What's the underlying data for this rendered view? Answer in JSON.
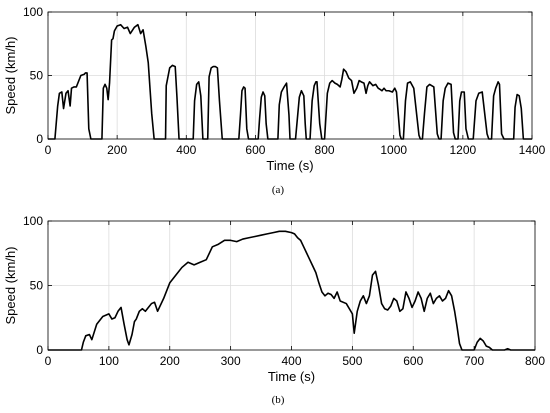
{
  "chart_data": [
    {
      "panel": "(a)",
      "type": "line",
      "xlabel": "Time (s)",
      "ylabel": "Speed (km/h)",
      "xlim": [
        0,
        1400
      ],
      "ylim": [
        0,
        100
      ],
      "xticks": [
        0,
        200,
        400,
        600,
        800,
        1000,
        1200,
        1400
      ],
      "yticks": [
        0,
        50,
        100
      ],
      "grid": true,
      "line_color": "#000000",
      "x": [
        0,
        20,
        28,
        33,
        40,
        45,
        52,
        58,
        64,
        68,
        75,
        82,
        95,
        105,
        108,
        113,
        118,
        124,
        156,
        160,
        165,
        170,
        174,
        178,
        184,
        188,
        192,
        200,
        210,
        220,
        230,
        238,
        250,
        260,
        268,
        275,
        283,
        290,
        300,
        307,
        315,
        322,
        330,
        340,
        342,
        352,
        360,
        368,
        373,
        379,
        386,
        392,
        420,
        424,
        430,
        436,
        442,
        448,
        462,
        466,
        472,
        478,
        484,
        490,
        496,
        504,
        508,
        552,
        557,
        561,
        566,
        570,
        575,
        580,
        583,
        608,
        612,
        617,
        622,
        627,
        631,
        636,
        643,
        665,
        669,
        675,
        683,
        690,
        697,
        700,
        704,
        716,
        720,
        727,
        733,
        740,
        744,
        747,
        755,
        758,
        764,
        770,
        775,
        778,
        786,
        792,
        800,
        808,
        815,
        822,
        830,
        837,
        845,
        850,
        855,
        862,
        870,
        878,
        885,
        893,
        900,
        906,
        914,
        920,
        925,
        930,
        940,
        948,
        955,
        961,
        966,
        972,
        978,
        986,
        996,
        1003,
        1008,
        1018,
        1022,
        1028,
        1034,
        1040,
        1048,
        1058,
        1073,
        1077,
        1083,
        1089,
        1096,
        1104,
        1116,
        1126,
        1131,
        1137,
        1143,
        1149,
        1157,
        1166,
        1173,
        1178,
        1186,
        1191,
        1196,
        1204,
        1209,
        1216,
        1226,
        1230,
        1238,
        1246,
        1256,
        1270,
        1275,
        1283,
        1289,
        1295,
        1302,
        1306,
        1312,
        1319,
        1347,
        1351,
        1357,
        1363,
        1369,
        1375,
        1400
      ],
      "y": [
        0,
        0,
        26,
        36,
        37,
        24,
        36,
        38,
        26,
        40,
        41,
        41,
        50,
        51,
        52,
        52,
        8,
        0,
        0,
        40,
        43,
        40,
        31,
        44,
        78,
        79,
        85,
        89,
        90,
        87,
        88,
        83,
        88,
        90,
        83,
        86,
        73,
        60,
        20,
        0,
        0,
        0,
        0,
        0,
        42,
        56,
        58,
        57,
        33,
        0,
        0,
        0,
        0,
        30,
        43,
        45,
        34,
        0,
        0,
        49,
        56,
        57,
        57,
        56,
        30,
        0,
        0,
        0,
        20,
        38,
        41,
        40,
        8,
        0,
        0,
        0,
        16,
        33,
        37,
        34,
        12,
        0,
        0,
        0,
        27,
        37,
        41,
        44,
        19,
        0,
        0,
        0,
        12,
        33,
        38,
        34,
        12,
        0,
        0,
        0,
        30,
        42,
        45,
        45,
        12,
        0,
        0,
        36,
        44,
        46,
        44,
        43,
        41,
        47,
        55,
        53,
        48,
        46,
        36,
        40,
        46,
        45,
        44,
        36,
        42,
        45,
        42,
        43,
        40,
        39,
        38,
        40,
        38,
        38,
        37,
        40,
        37,
        3,
        0,
        0,
        30,
        44,
        45,
        40,
        3,
        0,
        0,
        20,
        41,
        43,
        41,
        4,
        0,
        0,
        30,
        40,
        44,
        43,
        5,
        0,
        0,
        30,
        37,
        37,
        8,
        0,
        0,
        0,
        30,
        36,
        37,
        4,
        0,
        0,
        34,
        40,
        45,
        43,
        4,
        0,
        0,
        25,
        35,
        34,
        24,
        0,
        0
      ]
    },
    {
      "panel": "(b)",
      "type": "line",
      "xlabel": "Time (s)",
      "ylabel": "Speed (km/h)",
      "xlim": [
        0,
        800
      ],
      "ylim": [
        0,
        100
      ],
      "xticks": [
        0,
        100,
        200,
        300,
        400,
        500,
        600,
        700,
        800
      ],
      "yticks": [
        0,
        50,
        100
      ],
      "grid": true,
      "line_color": "#000000",
      "x": [
        0,
        55,
        58,
        62,
        68,
        72,
        80,
        90,
        100,
        105,
        110,
        115,
        120,
        125,
        130,
        133,
        138,
        142,
        145,
        150,
        155,
        160,
        165,
        170,
        175,
        180,
        190,
        200,
        210,
        220,
        230,
        240,
        250,
        260,
        270,
        280,
        290,
        300,
        310,
        320,
        330,
        340,
        350,
        360,
        370,
        380,
        390,
        400,
        405,
        410,
        415,
        420,
        425,
        430,
        435,
        440,
        445,
        450,
        455,
        460,
        465,
        470,
        475,
        480,
        490,
        500,
        503,
        508,
        513,
        518,
        523,
        528,
        533,
        538,
        543,
        548,
        553,
        558,
        563,
        568,
        573,
        578,
        583,
        588,
        593,
        598,
        603,
        608,
        613,
        618,
        623,
        628,
        633,
        638,
        643,
        648,
        653,
        658,
        663,
        668,
        672,
        676,
        680,
        690,
        700,
        705,
        710,
        715,
        720,
        725,
        730,
        740,
        750,
        755,
        760,
        770,
        800
      ],
      "y": [
        0,
        0,
        6,
        11,
        12,
        8,
        20,
        26,
        28,
        24,
        25,
        30,
        33,
        20,
        8,
        4,
        12,
        22,
        24,
        30,
        32,
        30,
        33,
        36,
        37,
        30,
        40,
        52,
        58,
        64,
        68,
        66,
        68,
        70,
        80,
        82,
        85,
        85,
        84,
        86,
        87,
        88,
        89,
        90,
        91,
        92,
        92,
        91,
        90,
        87,
        85,
        80,
        75,
        70,
        65,
        60,
        52,
        45,
        42,
        44,
        43,
        40,
        45,
        38,
        36,
        28,
        13,
        30,
        38,
        42,
        36,
        42,
        58,
        61,
        50,
        36,
        32,
        31,
        34,
        40,
        38,
        30,
        32,
        45,
        40,
        33,
        38,
        45,
        40,
        30,
        40,
        44,
        36,
        40,
        42,
        38,
        40,
        46,
        42,
        30,
        18,
        5,
        0,
        0,
        0,
        6,
        9,
        7,
        3,
        2,
        0,
        0,
        0,
        1,
        0,
        0,
        0
      ]
    }
  ],
  "labels": {
    "a": "(a)",
    "b": "(b)"
  }
}
